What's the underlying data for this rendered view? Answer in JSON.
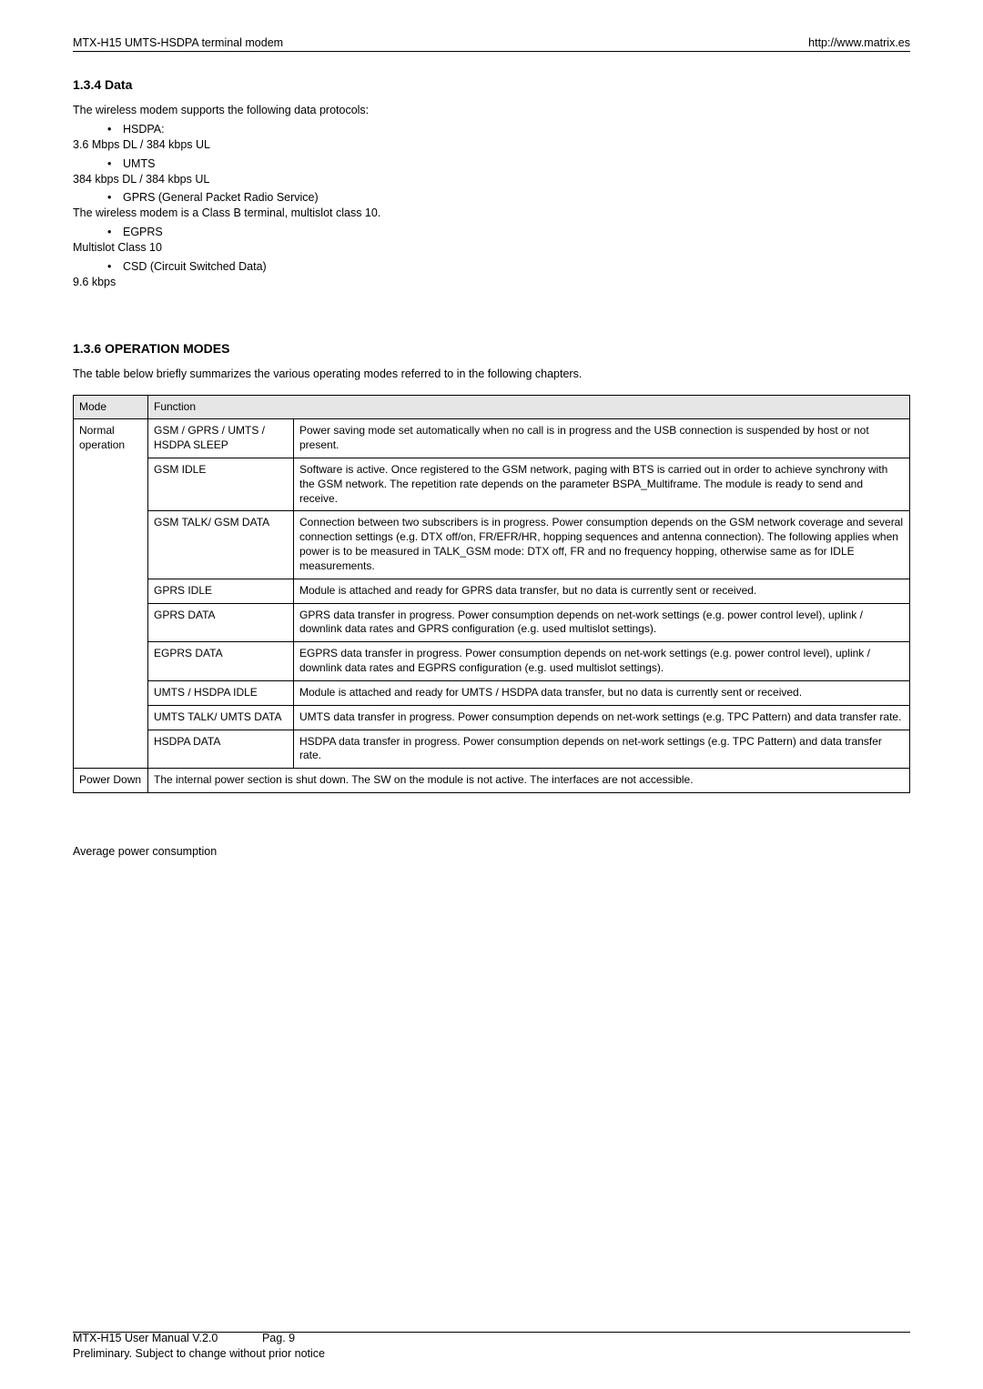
{
  "header": {
    "left": "MTX-H15  UMTS-HSDPA terminal modem",
    "right": "http://www.matrix.es"
  },
  "data_section": {
    "heading": "1.3.4 Data",
    "intro": "The wireless modem supports the following data protocols:",
    "items": [
      {
        "bullet": "HSDPA:",
        "sub": "3.6 Mbps DL / 384 kbps UL"
      },
      {
        "bullet": "UMTS",
        "sub": "384 kbps DL / 384 kbps UL"
      },
      {
        "bullet": "GPRS (General Packet Radio Service)",
        "sub": "The wireless modem is a Class B terminal, multislot class 10."
      },
      {
        "bullet": "EGPRS",
        "sub": "Multislot Class 10"
      },
      {
        "bullet": "CSD (Circuit Switched Data)",
        "sub": "9.6 kbps"
      }
    ]
  },
  "modes_section": {
    "heading": "1.3.6 OPERATION MODES",
    "intro": "The table below briefly summarizes the various operating modes referred to in the following chapters.",
    "columns": {
      "mode": "Mode",
      "func": "Function"
    },
    "rows": [
      {
        "mode": "Normal operation",
        "name": "GSM / GPRS / UMTS / HSDPA SLEEP",
        "desc": "Power saving mode set automatically when no call is in progress and the USB connection is suspended by host or not present."
      },
      {
        "name": "GSM IDLE",
        "desc": "Software is active. Once registered to the GSM network, paging with BTS is carried out in order to achieve synchrony with the GSM network. The repetition rate depends on the parameter BSPA_Multiframe. The module is ready to send and receive."
      },
      {
        "name": "GSM TALK/ GSM DATA",
        "desc": "Connection between two subscribers is in progress. Power consumption depends on the GSM network coverage and several connection settings (e.g. DTX off/on, FR/EFR/HR, hopping sequences and antenna connection). The following applies when power is to be measured in TALK_GSM mode: DTX off, FR and no frequency hopping, otherwise same as for IDLE measurements."
      },
      {
        "name": "GPRS IDLE",
        "desc": "Module is attached and ready for GPRS data transfer, but no data is currently sent or received."
      },
      {
        "name": "GPRS DATA",
        "desc": "GPRS data transfer in progress. Power consumption depends on net-work settings (e.g. power control level), uplink / downlink data rates and GPRS configuration (e.g. used multislot settings)."
      },
      {
        "name": "EGPRS DATA",
        "desc": "EGPRS data transfer in progress. Power consumption depends on net-work settings (e.g. power control level), uplink / downlink data rates and EGPRS configuration (e.g. used multislot settings)."
      },
      {
        "name": "UMTS / HSDPA IDLE",
        "desc": "Module is attached and ready for UMTS / HSDPA data transfer, but no data is currently sent or received."
      },
      {
        "name": "UMTS TALK/ UMTS DATA",
        "desc": "UMTS data transfer in progress. Power consumption depends on net-work settings (e.g. TPC Pattern) and data transfer rate."
      },
      {
        "name": "HSDPA DATA",
        "desc": "HSDPA data transfer in progress. Power consumption depends on net-work settings (e.g. TPC Pattern) and data transfer rate."
      }
    ],
    "power_down": {
      "mode": "Power Down",
      "desc": "The internal power section is shut down. The SW on the module is not active. The interfaces are not accessible."
    }
  },
  "avg_label": "Average power consumption",
  "footer": {
    "line1_left": "MTX-H15 User Manual   V.2.0",
    "line1_right": "Pag. 9",
    "line2": "Preliminary. Subject to change without prior notice"
  }
}
